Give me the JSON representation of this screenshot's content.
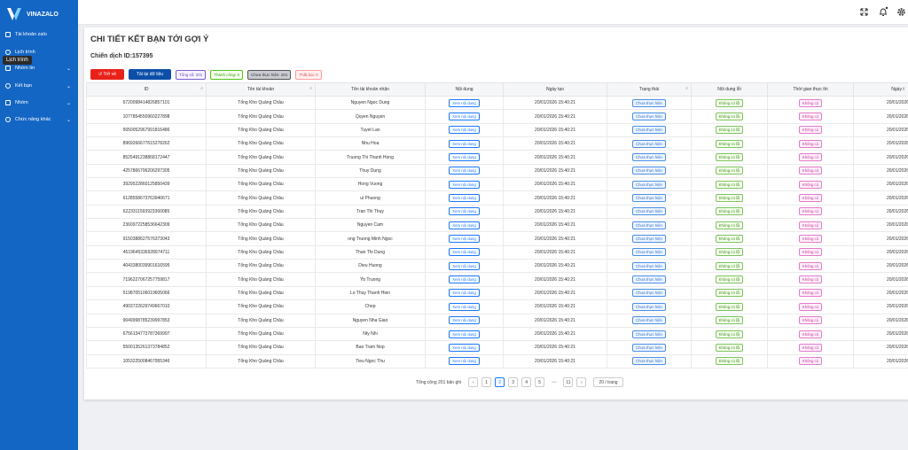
{
  "sidebar": {
    "logo": "VINAZALO",
    "menu": [
      "Tài khoản zalo",
      "Lịch trình",
      "Nhóm tin",
      "Kết bạn",
      "Nhóm",
      "Chức năng khác"
    ],
    "tooltip": "Lịch trình"
  },
  "page": {
    "title": "CHI TIẾT KẾT BẠN TỚI GỢI Ý",
    "campaign": "Chiến dịch ID:157395",
    "buttons": [
      "Trở về",
      "Tải lại dữ liệu"
    ],
    "tags": [
      "Tổng số: 201",
      "Thành công: 0",
      "Chưa thực hiện: 201",
      "Thất bại: 0"
    ]
  },
  "table": {
    "columns": [
      "ID",
      "Tên tài khoản",
      "Tên tài khoản nhận",
      "Nội dung",
      "Ngày tạo",
      "Trạng thái",
      "Nội dung lỗi",
      "Thời gian thực thi",
      "Ngày t"
    ],
    "rows": [
      [
        "6720098414826857101",
        "Tổng Kho Quảng Châu",
        "Nguyen Ngoc Dung",
        "Xem nội dung",
        "20/01/2026 15:40:21",
        "Chưa thực hiện",
        "Không có lỗi",
        "Không có",
        "20/01/2026"
      ],
      [
        "1077854550960227898",
        "Tổng Kho Quảng Châu",
        "Quyen Nguyen",
        "Xem nội dung",
        "20/01/2026 15:40:21",
        "Chưa thực hiện",
        "Không có lỗi",
        "Không có",
        "20/01/2026"
      ],
      [
        "5650052967991816486",
        "Tổng Kho Quảng Châu",
        "Tuyet Lan",
        "Xem nội dung",
        "20/01/2026 15:40:21",
        "Chưa thực hiện",
        "Không có lỗi",
        "Không có",
        "20/01/2026"
      ],
      [
        "8969266677615278262",
        "Tổng Kho Quảng Châu",
        "Nhu Hoa",
        "Xem nội dung",
        "20/01/2026 15:40:21",
        "Chưa thực hiện",
        "Không có lỗi",
        "Không có",
        "20/01/2026"
      ],
      [
        "8525491238868172447",
        "Tổng Kho Quảng Châu",
        "Truong Thi Thanh Hong",
        "Xem nội dung",
        "20/01/2026 15:40:21",
        "Chưa thực hiện",
        "Không có lỗi",
        "Không có",
        "20/01/2026"
      ],
      [
        "4257866796206297305",
        "Tổng Kho Quảng Châu",
        "Thuy Dung",
        "Xem nội dung",
        "20/01/2026 15:40:21",
        "Chưa thực hiện",
        "Không có lỗi",
        "Không có",
        "20/01/2026"
      ],
      [
        "3929522860125850439",
        "Tổng Kho Quảng Châu",
        "Hong Vuong",
        "Xem nội dung",
        "20/01/2026 15:40:21",
        "Chưa thực hiện",
        "Không có lỗi",
        "Không có",
        "20/01/2026"
      ],
      [
        "6128558673763940671",
        "Tổng Kho Quảng Châu",
        "ui Phuong",
        "Xem nội dung",
        "20/01/2026 15:40:21",
        "Chưa thực hiện",
        "Không có lỗi",
        "Không có",
        "20/01/2026"
      ],
      [
        "6223311593923360085",
        "Tổng Kho Quảng Châu",
        "Tran Thi Thuy",
        "Xem nội dung",
        "20/01/2026 15:40:21",
        "Chưa thực hiện",
        "Không có lỗi",
        "Không có",
        "20/01/2026"
      ],
      [
        "2360972258536642309",
        "Tổng Kho Quảng Châu",
        "Nguyen Cam",
        "Xem nội dung",
        "20/01/2026 15:40:21",
        "Chưa thực hiện",
        "Không có lỗi",
        "Không có",
        "20/01/2026"
      ],
      [
        "9150388627576373043",
        "Tổng Kho Quảng Châu",
        "ong Truong Minh Ngoc",
        "Xem nội dung",
        "20/01/2026 15:40:21",
        "Chưa thực hiện",
        "Không có lỗi",
        "Không có",
        "20/01/2026"
      ],
      [
        "4519645336928974711",
        "Tổng Kho Quảng Châu",
        "Than Thi Dung",
        "Xem nội dung",
        "20/01/2026 15:40:21",
        "Chưa thực hiện",
        "Không có lỗi",
        "Không có",
        "20/01/2026"
      ],
      [
        "4043380039901616595",
        "Tổng Kho Quảng Châu",
        "Dieu Huong",
        "Xem nội dung",
        "20/01/2026 15:40:21",
        "Chưa thực hiện",
        "Không có lỗi",
        "Không có",
        "20/01/2026"
      ],
      [
        "7196227067257759817",
        "Tổng Kho Quảng Châu",
        "Yb Truong",
        "Xem nội dung",
        "20/01/2026 15:40:21",
        "Chưa thực hiện",
        "Không có lỗi",
        "Không có",
        "20/01/2026"
      ],
      [
        "5198705106019605066",
        "Tổng Kho Quảng Châu",
        "Lo Thuy Thanh Hien",
        "Xem nội dung",
        "20/01/2026 15:40:21",
        "Chưa thực hiện",
        "Không có lỗi",
        "Không có",
        "20/01/2026"
      ],
      [
        "4903722629749667010",
        "Tổng Kho Quảng Châu",
        "Chep",
        "Xem nội dung",
        "20/01/2026 15:40:21",
        "Chưa thực hiện",
        "Không có lỗi",
        "Không có",
        "20/01/2026"
      ],
      [
        "9049998785239997853",
        "Tổng Kho Quảng Châu",
        "Nguyen Nha Giao",
        "Xem nội dung",
        "20/01/2026 15:40:21",
        "Chưa thực hiện",
        "Không có lỗi",
        "Không có",
        "20/01/2026"
      ],
      [
        "6756134773787369997",
        "Tổng Kho Quảng Châu",
        "Nty Nhi",
        "Xem nội dung",
        "20/01/2026 15:40:21",
        "Chưa thực hiện",
        "Không có lỗi",
        "Không có",
        "20/01/2026"
      ],
      [
        "5500135261373784852",
        "Tổng Kho Quảng Châu",
        "Bao Tram Nop",
        "Xem nội dung",
        "20/01/2026 15:40:21",
        "Chưa thực hiện",
        "Không có lỗi",
        "Không có",
        "20/01/2026"
      ],
      [
        "1053225008467955346",
        "Tổng Kho Quảng Châu",
        "Tieu Ngoc Thu",
        "Xem nội dung",
        "20/01/2026 15:40:21",
        "Chưa thực hiện",
        "Không có lỗi",
        "Không có",
        "20/01/2026"
      ]
    ]
  },
  "pagination": {
    "total": "Tổng cộng 201 bản ghi",
    "pages": [
      "1",
      "2",
      "3",
      "4",
      "5",
      "•••",
      "11"
    ],
    "page_size": "20 / trang"
  }
}
